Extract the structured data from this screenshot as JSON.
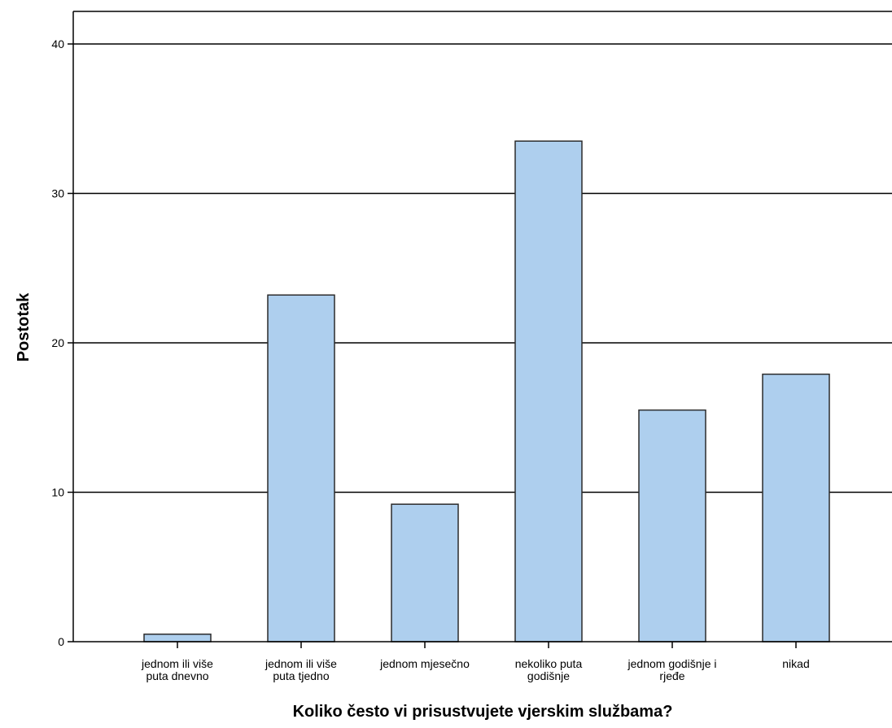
{
  "chart_data": {
    "type": "bar",
    "xlabel": "Koliko često vi prisustvujete vjerskim službama?",
    "ylabel": "Postotak",
    "ylim": [
      0,
      42
    ],
    "yticks": [
      0,
      10,
      20,
      30,
      40
    ],
    "grid": true,
    "categories": [
      [
        "jednom ili više",
        "puta dnevno"
      ],
      [
        "jednom ili više",
        "puta tjedno"
      ],
      [
        "jednom mjesečno"
      ],
      [
        "nekoliko puta",
        "godišnje"
      ],
      [
        "jednom godišnje i",
        "rjeđe"
      ],
      [
        "nikad"
      ]
    ],
    "values": [
      0.5,
      23.2,
      9.2,
      33.5,
      15.5,
      17.9
    ],
    "colors": {
      "bar_fill": "#aecfee",
      "bar_stroke": "#2b2b2b",
      "grid": "#000000",
      "axis": "#000000"
    }
  }
}
